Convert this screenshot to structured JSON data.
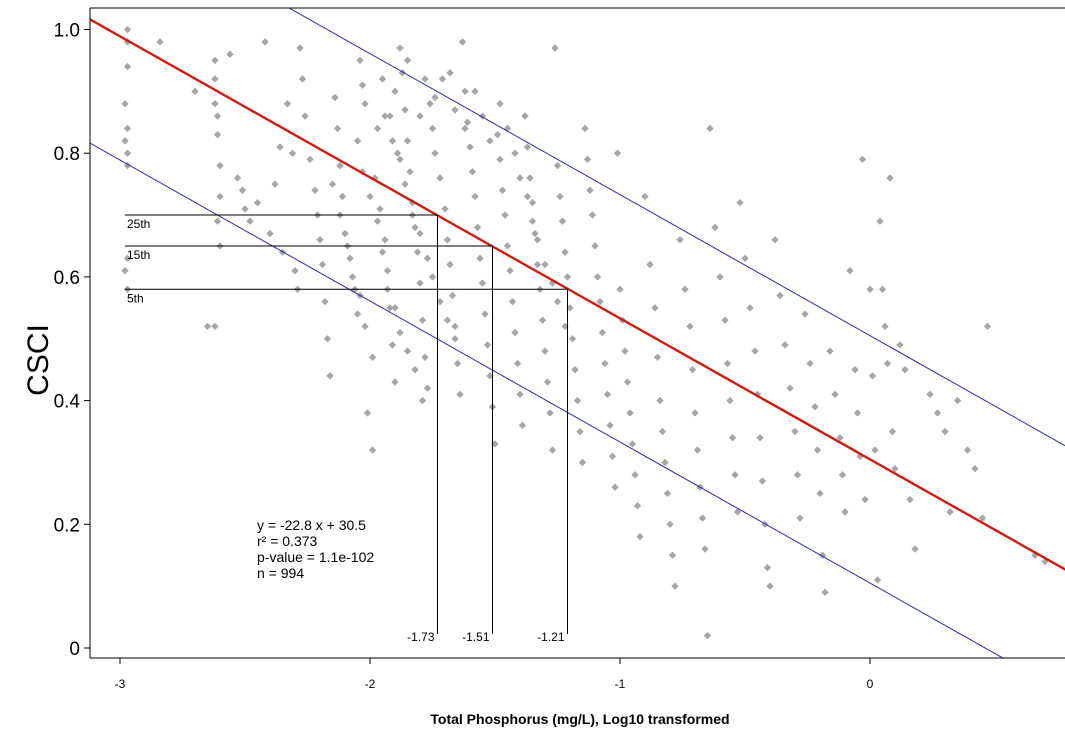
{
  "chart_data": {
    "type": "scatter",
    "xlabel": "Total Phosphorus (mg/L), Log10 transformed",
    "ylabel": "CSCI",
    "xlim": [
      -3.12,
      0.8
    ],
    "ylim": [
      -0.02,
      1.04
    ],
    "x_ticks": [
      -3,
      -2,
      -1,
      0
    ],
    "x_tick_labels": [
      "-3",
      "-2",
      "-1",
      "0"
    ],
    "y_ticks": [
      0,
      0.2,
      0.4,
      0.6,
      0.8,
      1.0
    ],
    "y_tick_labels": [
      "0",
      "0.2",
      "0.4",
      "0.6",
      "0.8",
      "1.0"
    ],
    "point_color": "#a6a6a6",
    "regression": {
      "slope": -0.228,
      "intercept": 0.305,
      "color": "#d01c10"
    },
    "prediction_bands": [
      {
        "slope": -0.228,
        "intercept": 0.505,
        "color": "#2b2bb0"
      },
      {
        "slope": -0.228,
        "intercept": 0.105,
        "color": "#2b2bb0"
      }
    ],
    "thresholds": [
      {
        "percentile_label": "25th",
        "y": 0.7,
        "x": -1.73,
        "x_label": "-1.73"
      },
      {
        "percentile_label": "15th",
        "y": 0.65,
        "x": -1.51,
        "x_label": "-1.51"
      },
      {
        "percentile_label": "5th",
        "y": 0.58,
        "x": -1.21,
        "x_label": "-1.21"
      }
    ],
    "stats_text": [
      "y =  -22.8 x +  30.5",
      "r² =  0.373",
      "p-value =  1.1e-102",
      "n =  994"
    ],
    "points": [
      [
        -2.97,
        1.0
      ],
      [
        -2.97,
        0.98
      ],
      [
        -2.97,
        0.94
      ],
      [
        -2.98,
        0.88
      ],
      [
        -2.97,
        0.84
      ],
      [
        -2.98,
        0.82
      ],
      [
        -2.97,
        0.8
      ],
      [
        -2.97,
        0.78
      ],
      [
        -2.97,
        0.63
      ],
      [
        -2.98,
        0.61
      ],
      [
        -2.97,
        0.58
      ],
      [
        -2.84,
        0.98
      ],
      [
        -2.7,
        0.9
      ],
      [
        -2.62,
        0.95
      ],
      [
        -2.62,
        0.92
      ],
      [
        -2.62,
        0.88
      ],
      [
        -2.61,
        0.86
      ],
      [
        -2.61,
        0.83
      ],
      [
        -2.6,
        0.78
      ],
      [
        -2.6,
        0.73
      ],
      [
        -2.61,
        0.69
      ],
      [
        -2.6,
        0.65
      ],
      [
        -2.65,
        0.52
      ],
      [
        -2.62,
        0.52
      ],
      [
        -2.56,
        0.96
      ],
      [
        -2.53,
        0.76
      ],
      [
        -2.51,
        0.74
      ],
      [
        -2.5,
        0.71
      ],
      [
        -2.48,
        0.69
      ],
      [
        -2.45,
        0.72
      ],
      [
        -2.42,
        0.98
      ],
      [
        -2.4,
        0.67
      ],
      [
        -2.38,
        0.75
      ],
      [
        -2.36,
        0.81
      ],
      [
        -2.35,
        0.64
      ],
      [
        -2.33,
        0.88
      ],
      [
        -2.31,
        0.8
      ],
      [
        -2.3,
        0.61
      ],
      [
        -2.29,
        0.58
      ],
      [
        -2.28,
        0.97
      ],
      [
        -2.27,
        0.92
      ],
      [
        -2.26,
        0.86
      ],
      [
        -2.24,
        0.79
      ],
      [
        -2.22,
        0.74
      ],
      [
        -2.21,
        0.7
      ],
      [
        -2.2,
        0.66
      ],
      [
        -2.19,
        0.62
      ],
      [
        -2.18,
        0.56
      ],
      [
        -2.17,
        0.5
      ],
      [
        -2.16,
        0.44
      ],
      [
        -2.14,
        0.89
      ],
      [
        -2.13,
        0.84
      ],
      [
        -2.12,
        0.78
      ],
      [
        -2.11,
        0.73
      ],
      [
        -2.1,
        0.67
      ],
      [
        -2.08,
        0.63
      ],
      [
        -2.06,
        0.58
      ],
      [
        -2.05,
        0.54
      ],
      [
        -2.04,
        0.95
      ],
      [
        -2.03,
        0.91
      ],
      [
        -2.02,
        0.88
      ],
      [
        -2.01,
        0.38
      ],
      [
        -1.99,
        0.32
      ],
      [
        -1.98,
        0.76
      ],
      [
        -1.96,
        0.71
      ],
      [
        -1.94,
        0.66
      ],
      [
        -1.93,
        0.61
      ],
      [
        -1.92,
        0.55
      ],
      [
        -1.91,
        0.49
      ],
      [
        -1.9,
        0.43
      ],
      [
        -1.88,
        0.97
      ],
      [
        -1.87,
        0.93
      ],
      [
        -1.86,
        0.87
      ],
      [
        -1.85,
        0.82
      ],
      [
        -1.84,
        0.77
      ],
      [
        -1.83,
        0.72
      ],
      [
        -1.82,
        0.68
      ],
      [
        -1.81,
        0.64
      ],
      [
        -1.8,
        0.59
      ],
      [
        -1.79,
        0.53
      ],
      [
        -1.78,
        0.47
      ],
      [
        -1.77,
        0.42
      ],
      [
        -1.76,
        0.88
      ],
      [
        -1.75,
        0.84
      ],
      [
        -1.74,
        0.8
      ],
      [
        -1.72,
        0.76
      ],
      [
        -1.71,
        0.92
      ],
      [
        -1.7,
        0.71
      ],
      [
        -1.69,
        0.66
      ],
      [
        -1.68,
        0.62
      ],
      [
        -1.67,
        0.57
      ],
      [
        -1.66,
        0.52
      ],
      [
        -1.65,
        0.46
      ],
      [
        -1.64,
        0.41
      ],
      [
        -1.63,
        0.98
      ],
      [
        -1.62,
        0.9
      ],
      [
        -1.61,
        0.85
      ],
      [
        -1.6,
        0.81
      ],
      [
        -1.59,
        0.77
      ],
      [
        -1.58,
        0.73
      ],
      [
        -1.57,
        0.68
      ],
      [
        -1.56,
        0.63
      ],
      [
        -1.55,
        0.59
      ],
      [
        -1.54,
        0.54
      ],
      [
        -1.53,
        0.49
      ],
      [
        -1.52,
        0.44
      ],
      [
        -1.51,
        0.39
      ],
      [
        -1.5,
        0.33
      ],
      [
        -1.49,
        0.83
      ],
      [
        -1.48,
        0.79
      ],
      [
        -1.47,
        0.74
      ],
      [
        -1.46,
        0.7
      ],
      [
        -1.45,
        0.65
      ],
      [
        -1.44,
        0.61
      ],
      [
        -1.43,
        0.56
      ],
      [
        -1.42,
        0.51
      ],
      [
        -1.41,
        0.46
      ],
      [
        -1.4,
        0.41
      ],
      [
        -1.39,
        0.36
      ],
      [
        -1.38,
        0.86
      ],
      [
        -1.37,
        0.81
      ],
      [
        -1.36,
        0.76
      ],
      [
        -1.35,
        0.72
      ],
      [
        -1.34,
        0.67
      ],
      [
        -1.33,
        0.62
      ],
      [
        -1.32,
        0.58
      ],
      [
        -1.31,
        0.53
      ],
      [
        -1.3,
        0.48
      ],
      [
        -1.29,
        0.43
      ],
      [
        -1.28,
        0.38
      ],
      [
        -1.27,
        0.32
      ],
      [
        -1.26,
        0.97
      ],
      [
        -1.25,
        0.78
      ],
      [
        -1.24,
        0.73
      ],
      [
        -1.23,
        0.69
      ],
      [
        -1.22,
        0.64
      ],
      [
        -1.21,
        0.6
      ],
      [
        -1.2,
        0.55
      ],
      [
        -1.19,
        0.5
      ],
      [
        -1.18,
        0.45
      ],
      [
        -1.17,
        0.4
      ],
      [
        -1.16,
        0.35
      ],
      [
        -1.15,
        0.3
      ],
      [
        -1.14,
        0.84
      ],
      [
        -1.13,
        0.79
      ],
      [
        -1.12,
        0.74
      ],
      [
        -1.11,
        0.7
      ],
      [
        -1.1,
        0.65
      ],
      [
        -1.09,
        0.6
      ],
      [
        -1.08,
        0.56
      ],
      [
        -1.07,
        0.51
      ],
      [
        -1.06,
        0.46
      ],
      [
        -1.05,
        0.41
      ],
      [
        -1.04,
        0.36
      ],
      [
        -1.03,
        0.31
      ],
      [
        -1.02,
        0.26
      ],
      [
        -1.01,
        0.8
      ],
      [
        -1.0,
        0.58
      ],
      [
        -0.99,
        0.53
      ],
      [
        -0.98,
        0.48
      ],
      [
        -0.97,
        0.43
      ],
      [
        -0.96,
        0.38
      ],
      [
        -0.95,
        0.33
      ],
      [
        -0.94,
        0.28
      ],
      [
        -0.93,
        0.23
      ],
      [
        -0.92,
        0.18
      ],
      [
        -0.9,
        0.73
      ],
      [
        -0.88,
        0.62
      ],
      [
        -0.86,
        0.55
      ],
      [
        -0.85,
        0.47
      ],
      [
        -0.84,
        0.4
      ],
      [
        -0.83,
        0.35
      ],
      [
        -0.82,
        0.3
      ],
      [
        -0.81,
        0.25
      ],
      [
        -0.8,
        0.2
      ],
      [
        -0.79,
        0.15
      ],
      [
        -0.78,
        0.1
      ],
      [
        -0.76,
        0.66
      ],
      [
        -0.74,
        0.58
      ],
      [
        -0.72,
        0.52
      ],
      [
        -0.71,
        0.45
      ],
      [
        -0.7,
        0.38
      ],
      [
        -0.69,
        0.32
      ],
      [
        -0.68,
        0.26
      ],
      [
        -0.67,
        0.21
      ],
      [
        -0.66,
        0.16
      ],
      [
        -0.65,
        0.02
      ],
      [
        -0.64,
        0.84
      ],
      [
        -0.62,
        0.68
      ],
      [
        -0.6,
        0.6
      ],
      [
        -0.58,
        0.53
      ],
      [
        -0.57,
        0.46
      ],
      [
        -0.56,
        0.4
      ],
      [
        -0.55,
        0.34
      ],
      [
        -0.54,
        0.28
      ],
      [
        -0.53,
        0.22
      ],
      [
        -0.52,
        0.72
      ],
      [
        -0.5,
        0.63
      ],
      [
        -0.48,
        0.55
      ],
      [
        -0.46,
        0.48
      ],
      [
        -0.45,
        0.41
      ],
      [
        -0.44,
        0.34
      ],
      [
        -0.43,
        0.27
      ],
      [
        -0.42,
        0.2
      ],
      [
        -0.41,
        0.13
      ],
      [
        -0.4,
        0.1
      ],
      [
        -0.38,
        0.66
      ],
      [
        -0.36,
        0.57
      ],
      [
        -0.34,
        0.49
      ],
      [
        -0.32,
        0.42
      ],
      [
        -0.3,
        0.35
      ],
      [
        -0.29,
        0.28
      ],
      [
        -0.28,
        0.21
      ],
      [
        -0.26,
        0.54
      ],
      [
        -0.24,
        0.46
      ],
      [
        -0.22,
        0.39
      ],
      [
        -0.21,
        0.32
      ],
      [
        -0.2,
        0.25
      ],
      [
        -0.19,
        0.15
      ],
      [
        -0.18,
        0.09
      ],
      [
        -0.16,
        0.48
      ],
      [
        -0.14,
        0.41
      ],
      [
        -0.12,
        0.34
      ],
      [
        -0.11,
        0.28
      ],
      [
        -0.1,
        0.22
      ],
      [
        -0.08,
        0.61
      ],
      [
        -0.06,
        0.45
      ],
      [
        -0.05,
        0.38
      ],
      [
        -0.04,
        0.31
      ],
      [
        -0.03,
        0.79
      ],
      [
        -0.02,
        0.24
      ],
      [
        0.0,
        0.58
      ],
      [
        0.01,
        0.44
      ],
      [
        0.02,
        0.32
      ],
      [
        0.03,
        0.11
      ],
      [
        0.04,
        0.69
      ],
      [
        0.05,
        0.58
      ],
      [
        0.06,
        0.52
      ],
      [
        0.07,
        0.46
      ],
      [
        0.08,
        0.76
      ],
      [
        0.09,
        0.35
      ],
      [
        0.1,
        0.29
      ],
      [
        0.12,
        0.49
      ],
      [
        0.14,
        0.45
      ],
      [
        0.16,
        0.24
      ],
      [
        0.18,
        0.16
      ],
      [
        0.24,
        0.41
      ],
      [
        0.27,
        0.38
      ],
      [
        0.3,
        0.35
      ],
      [
        0.32,
        0.22
      ],
      [
        0.35,
        0.4
      ],
      [
        0.39,
        0.32
      ],
      [
        0.42,
        0.29
      ],
      [
        0.45,
        0.21
      ],
      [
        0.47,
        0.52
      ],
      [
        0.66,
        0.15
      ],
      [
        0.7,
        0.14
      ],
      [
        -1.9,
        0.9
      ],
      [
        -1.85,
        0.95
      ],
      [
        -1.8,
        0.86
      ],
      [
        -1.78,
        0.92
      ],
      [
        -1.74,
        0.89
      ],
      [
        -1.68,
        0.93
      ],
      [
        -1.66,
        0.87
      ],
      [
        -1.62,
        0.84
      ],
      [
        -1.58,
        0.9
      ],
      [
        -1.55,
        0.86
      ],
      [
        -1.52,
        0.82
      ],
      [
        -1.48,
        0.88
      ],
      [
        -1.45,
        0.84
      ],
      [
        -1.42,
        0.8
      ],
      [
        -1.4,
        0.76
      ],
      [
        -1.37,
        0.73
      ],
      [
        -1.35,
        0.69
      ],
      [
        -1.33,
        0.66
      ],
      [
        -1.3,
        0.62
      ],
      [
        -1.27,
        0.59
      ],
      [
        -1.25,
        0.56
      ],
      [
        -1.22,
        0.52
      ],
      [
        -1.94,
        0.86
      ],
      [
        -1.91,
        0.82
      ],
      [
        -1.88,
        0.79
      ],
      [
        -1.86,
        0.75
      ],
      [
        -1.83,
        0.7
      ],
      [
        -1.8,
        0.67
      ],
      [
        -1.77,
        0.63
      ],
      [
        -1.75,
        0.6
      ],
      [
        -1.72,
        0.56
      ],
      [
        -1.69,
        0.53
      ],
      [
        -1.66,
        0.5
      ],
      [
        -2.05,
        0.82
      ],
      [
        -2.03,
        0.77
      ],
      [
        -2.0,
        0.73
      ],
      [
        -1.97,
        0.69
      ],
      [
        -1.95,
        0.64
      ],
      [
        -1.93,
        0.58
      ],
      [
        -1.9,
        0.55
      ],
      [
        -1.88,
        0.51
      ],
      [
        -1.85,
        0.48
      ],
      [
        -1.82,
        0.45
      ],
      [
        -1.79,
        0.4
      ],
      [
        -2.15,
        0.75
      ],
      [
        -2.12,
        0.7
      ],
      [
        -2.09,
        0.65
      ],
      [
        -2.07,
        0.6
      ],
      [
        -2.04,
        0.57
      ],
      [
        -2.02,
        0.52
      ],
      [
        -1.99,
        0.47
      ],
      [
        -1.97,
        0.84
      ],
      [
        -1.95,
        0.92
      ],
      [
        -1.92,
        0.86
      ],
      [
        -1.89,
        0.8
      ]
    ]
  }
}
